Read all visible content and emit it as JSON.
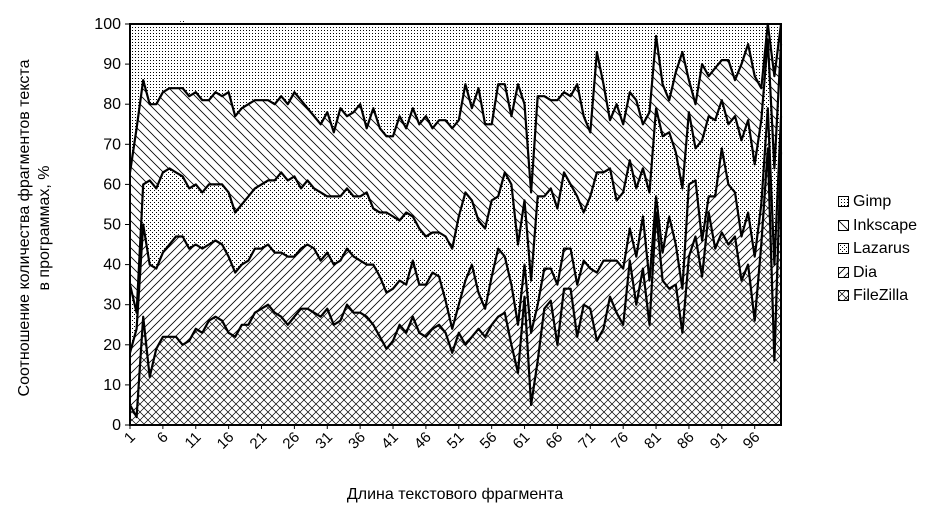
{
  "chart_data": {
    "type": "area",
    "stacked": true,
    "percent": true,
    "xlabel": "Длина текстового фрагмента",
    "ylabel_lines": [
      "Соотношение количества фрагментов текста",
      "в программах, %"
    ],
    "ylim": [
      0,
      100
    ],
    "yticks": [
      0,
      10,
      20,
      30,
      40,
      50,
      60,
      70,
      80,
      90,
      100
    ],
    "xticks": [
      1,
      6,
      11,
      16,
      21,
      26,
      31,
      36,
      41,
      46,
      51,
      56,
      61,
      66,
      71,
      76,
      81,
      86,
      91,
      96
    ],
    "x": [
      1,
      2,
      3,
      4,
      5,
      6,
      7,
      8,
      9,
      10,
      11,
      12,
      13,
      14,
      15,
      16,
      17,
      18,
      19,
      20,
      21,
      22,
      23,
      24,
      25,
      26,
      27,
      28,
      29,
      30,
      31,
      32,
      33,
      34,
      35,
      36,
      37,
      38,
      39,
      40,
      41,
      42,
      43,
      44,
      45,
      46,
      47,
      48,
      49,
      50,
      51,
      52,
      53,
      54,
      55,
      56,
      57,
      58,
      59,
      60,
      61,
      62,
      63,
      64,
      65,
      66,
      67,
      68,
      69,
      70,
      71,
      72,
      73,
      74,
      75,
      76,
      77,
      78,
      79,
      80,
      81,
      82,
      83,
      84,
      85,
      86,
      87,
      88,
      89,
      90,
      91,
      92,
      93,
      94,
      95,
      96,
      97,
      98,
      99,
      100
    ],
    "legend_position": "right",
    "grid": false,
    "series": [
      {
        "name": "Gimp",
        "pattern": "dots",
        "values": [
          37,
          26,
          14,
          20,
          20,
          17,
          16,
          16,
          17,
          18,
          17,
          19,
          19,
          17,
          18,
          17,
          23,
          21,
          20,
          19,
          19,
          19,
          20,
          18,
          19,
          17,
          19,
          21,
          23,
          25,
          22,
          27,
          21,
          23,
          22,
          20,
          26,
          21,
          26,
          28,
          28,
          23,
          26,
          21,
          25,
          23,
          26,
          24,
          24,
          26,
          24,
          15,
          21,
          16,
          25,
          25,
          15,
          15,
          23,
          15,
          20,
          42,
          18,
          18,
          19,
          19,
          17,
          18,
          15,
          23,
          27,
          7,
          15,
          24,
          20,
          25,
          17,
          19,
          25,
          22,
          3,
          15,
          19,
          12,
          7,
          14,
          20,
          10,
          13,
          11,
          9,
          9,
          14,
          10,
          5,
          13,
          16,
          0,
          13,
          0
        ]
      },
      {
        "name": "Inkscape",
        "pattern": "diag",
        "values": [
          28,
          46,
          26,
          19,
          21,
          20,
          20,
          21,
          22,
          23,
          23,
          23,
          21,
          23,
          22,
          25,
          24,
          24,
          23,
          22,
          21,
          20,
          19,
          19,
          19,
          21,
          22,
          18,
          18,
          17,
          21,
          16,
          22,
          18,
          21,
          23,
          16,
          25,
          21,
          19,
          20,
          26,
          21,
          27,
          26,
          30,
          26,
          28,
          29,
          30,
          24,
          27,
          23,
          33,
          26,
          19,
          28,
          22,
          17,
          40,
          24,
          22,
          25,
          25,
          22,
          27,
          20,
          22,
          28,
          24,
          16,
          30,
          22,
          12,
          24,
          17,
          17,
          22,
          11,
          20,
          18,
          13,
          8,
          20,
          34,
          8,
          11,
          19,
          10,
          13,
          10,
          16,
          9,
          19,
          19,
          22,
          8,
          4,
          23,
          5
        ]
      },
      {
        "name": "Lazarus",
        "pattern": "dots2",
        "values": [
          17,
          4,
          10,
          21,
          20,
          20,
          19,
          16,
          15,
          15,
          15,
          14,
          15,
          14,
          15,
          16,
          15,
          15,
          16,
          15,
          16,
          16,
          18,
          20,
          19,
          20,
          15,
          16,
          15,
          17,
          14,
          17,
          16,
          15,
          15,
          16,
          18,
          14,
          16,
          20,
          18,
          15,
          18,
          11,
          14,
          12,
          10,
          11,
          16,
          20,
          22,
          22,
          16,
          18,
          20,
          19,
          13,
          21,
          25,
          20,
          16,
          13,
          27,
          18,
          20,
          19,
          19,
          16,
          22,
          12,
          18,
          25,
          22,
          23,
          15,
          19,
          17,
          17,
          12,
          22,
          22,
          29,
          21,
          23,
          25,
          18,
          8,
          25,
          20,
          19,
          12,
          15,
          19,
          24,
          23,
          23,
          21,
          17,
          24,
          18
        ]
      },
      {
        "name": "Dia",
        "pattern": "diag2",
        "values": [
          13,
          22,
          23,
          28,
          20,
          21,
          23,
          25,
          27,
          23,
          21,
          21,
          19,
          19,
          19,
          19,
          16,
          15,
          16,
          16,
          15,
          15,
          15,
          16,
          17,
          15,
          15,
          16,
          16,
          14,
          14,
          15,
          15,
          14,
          14,
          13,
          13,
          15,
          15,
          14,
          13,
          11,
          12,
          14,
          12,
          13,
          14,
          12,
          8,
          6,
          7,
          16,
          18,
          9,
          7,
          12,
          17,
          14,
          15,
          12,
          8,
          18,
          14,
          10,
          8,
          15,
          10,
          10,
          13,
          11,
          10,
          17,
          17,
          9,
          13,
          14,
          8,
          12,
          13,
          11,
          4,
          7,
          18,
          10,
          11,
          18,
          14,
          9,
          4,
          13,
          21,
          15,
          11,
          11,
          13,
          16,
          10,
          10,
          24,
          9
        ]
      },
      {
        "name": "FileZilla",
        "pattern": "cross",
        "values": [
          5,
          2,
          27,
          12,
          19,
          22,
          22,
          22,
          20,
          21,
          24,
          23,
          26,
          27,
          26,
          23,
          22,
          25,
          25,
          28,
          29,
          30,
          28,
          27,
          25,
          27,
          29,
          29,
          28,
          27,
          29,
          25,
          26,
          30,
          28,
          28,
          27,
          25,
          22,
          19,
          21,
          25,
          23,
          27,
          23,
          22,
          24,
          25,
          23,
          18,
          23,
          20,
          22,
          24,
          22,
          25,
          27,
          28,
          20,
          13,
          32,
          5,
          16,
          29,
          31,
          20,
          34,
          34,
          22,
          30,
          29,
          21,
          24,
          32,
          28,
          25,
          41,
          30,
          39,
          25,
          53,
          36,
          34,
          35,
          23,
          42,
          47,
          37,
          53,
          44,
          48,
          45,
          47,
          36,
          40,
          26,
          45,
          69,
          16,
          68
        ]
      }
    ]
  },
  "colors": {
    "line": "#000000",
    "background": "#ffffff"
  }
}
